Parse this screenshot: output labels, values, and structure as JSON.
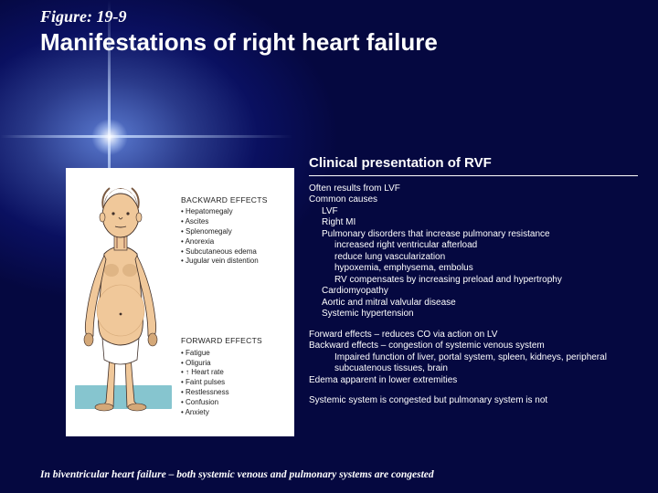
{
  "header": {
    "figure_label": "Figure:  19-9",
    "title": "Manifestations of right heart failure"
  },
  "diagram": {
    "backward_title": "BACKWARD EFFECTS",
    "backward_items": [
      "Hepatomegaly",
      "Ascites",
      "Splenomegaly",
      "Anorexia",
      "Subcutaneous edema",
      "Jugular vein distention"
    ],
    "forward_title": "FORWARD EFFECTS",
    "forward_items": [
      "Fatigue",
      "Oliguria",
      "↑ Heart rate",
      "Faint pulses",
      "Restlessness",
      "Confusion",
      "Anxiety"
    ],
    "colors": {
      "skin": "#f0c89a",
      "skin_shadow": "#d4a878",
      "brief": "#ffffff",
      "platform": "#86c5cf",
      "outline": "#40302a"
    }
  },
  "clinical": {
    "title": "Clinical presentation of RVF",
    "block1": [
      {
        "t": "Often results from LVF",
        "i": 0
      },
      {
        "t": "Common causes",
        "i": 0
      },
      {
        "t": "LVF",
        "i": 1
      },
      {
        "t": "Right MI",
        "i": 1
      },
      {
        "t": "Pulmonary disorders that increase pulmonary resistance",
        "i": 1
      },
      {
        "t": "increased right ventricular afterload",
        "i": 2
      },
      {
        "t": "reduce lung vascularization",
        "i": 2
      },
      {
        "t": "hypoxemia, emphysema, embolus",
        "i": 2
      },
      {
        "t": "RV compensates by increasing preload and hypertrophy",
        "i": 2
      },
      {
        "t": "Cardiomyopathy",
        "i": 1
      },
      {
        "t": "Aortic and mitral valvular disease",
        "i": 1
      },
      {
        "t": "Systemic hypertension",
        "i": 1
      }
    ],
    "block2": [
      {
        "t": "Forward effects – reduces CO via action on LV",
        "i": 0
      },
      {
        "t": "Backward effects – congestion of systemic venous system",
        "i": 0
      },
      {
        "t": "Impaired function of liver, portal system, spleen, kidneys, peripheral subcuatenous tissues, brain",
        "i": 2
      },
      {
        "t": "Edema apparent in lower extremities",
        "i": 0
      }
    ],
    "block3": [
      {
        "t": "Systemic system is congested but pulmonary system is not",
        "i": 0
      }
    ]
  },
  "footer": "In biventricular heart failure – both systemic venous and pulmonary systems are congested"
}
